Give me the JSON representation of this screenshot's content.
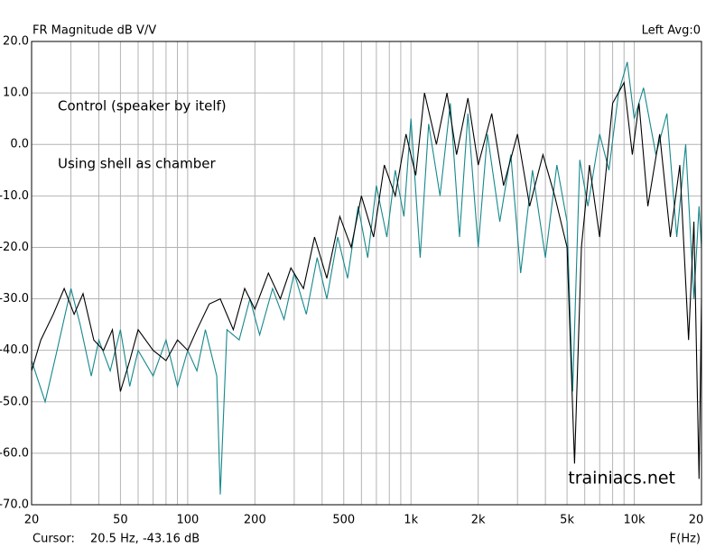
{
  "chart_data": {
    "type": "line",
    "title": "FR Magnitude dB V/V",
    "top_right": "Left  Avg:0",
    "cursor_label": "Cursor:",
    "cursor_value": "20.5 Hz, -43.16 dB",
    "x_label": "F(Hz)",
    "watermark": "trainiacs.net",
    "log_x": true,
    "grid": true,
    "xlim": [
      20,
      20000
    ],
    "ylim": [
      -70,
      20
    ],
    "xticks": [
      20,
      50,
      100,
      200,
      500,
      {
        "value": 1000,
        "label": "1k"
      },
      {
        "value": 2000,
        "label": "2k"
      },
      {
        "value": 5000,
        "label": "5k"
      },
      {
        "value": 10000,
        "label": "10k"
      },
      {
        "value": 20000,
        "label": "20"
      }
    ],
    "minor_xticks": [
      30,
      40,
      60,
      70,
      80,
      90,
      300,
      400,
      600,
      700,
      800,
      900,
      3000,
      4000,
      6000,
      7000,
      8000,
      9000
    ],
    "yticks": [
      {
        "value": 20,
        "label": "20.0"
      },
      {
        "value": 10,
        "label": "10.0"
      },
      {
        "value": 0,
        "label": "0.0"
      },
      {
        "value": -10,
        "label": "-10.0"
      },
      {
        "value": -20,
        "label": "-20.0"
      },
      {
        "value": -30,
        "label": "-30.0"
      },
      {
        "value": -40,
        "label": "-40.0"
      },
      {
        "value": -50,
        "label": "-50.0"
      },
      {
        "value": -60,
        "label": "-60.0"
      },
      {
        "value": -70,
        "label": "-70.0"
      }
    ],
    "series": [
      {
        "name": "Control (speaker by itelf)",
        "color": "#16888c",
        "x": [
          20,
          23,
          26,
          30,
          33,
          37,
          40,
          45,
          50,
          55,
          60,
          70,
          80,
          90,
          100,
          110,
          120,
          135,
          140,
          150,
          170,
          190,
          210,
          240,
          270,
          300,
          340,
          380,
          420,
          470,
          520,
          580,
          640,
          700,
          780,
          850,
          930,
          1000,
          1100,
          1200,
          1350,
          1500,
          1650,
          1800,
          2000,
          2200,
          2500,
          2800,
          3100,
          3500,
          4000,
          4500,
          5000,
          5300,
          5700,
          6200,
          7000,
          7700,
          8500,
          9300,
          10000,
          11000,
          12500,
          14000,
          15500,
          17000,
          18500,
          19500,
          20000
        ],
        "values": [
          -42,
          -50,
          -40,
          -28,
          -35,
          -45,
          -38,
          -44,
          -36,
          -47,
          -40,
          -45,
          -38,
          -47,
          -40,
          -44,
          -36,
          -45,
          -68,
          -36,
          -38,
          -30,
          -37,
          -28,
          -34,
          -25,
          -33,
          -22,
          -30,
          -18,
          -26,
          -12,
          -22,
          -8,
          -18,
          -5,
          -14,
          5,
          -22,
          4,
          -10,
          8,
          -18,
          6,
          -20,
          2,
          -15,
          -2,
          -25,
          -5,
          -22,
          -4,
          -15,
          -48,
          -3,
          -12,
          2,
          -5,
          10,
          16,
          5,
          11,
          -2,
          6,
          -18,
          0,
          -30,
          -12,
          -20
        ]
      },
      {
        "name": "Using shell as chamber",
        "color": "#000000",
        "x": [
          20,
          22,
          25,
          28,
          31,
          34,
          38,
          42,
          46,
          50,
          55,
          60,
          70,
          80,
          90,
          100,
          110,
          125,
          140,
          160,
          180,
          200,
          230,
          260,
          290,
          330,
          370,
          420,
          480,
          540,
          600,
          680,
          760,
          850,
          950,
          1050,
          1150,
          1300,
          1450,
          1600,
          1800,
          2000,
          2300,
          2600,
          3000,
          3400,
          3900,
          4400,
          5000,
          5400,
          5800,
          6300,
          7000,
          8000,
          9000,
          9800,
          10500,
          11500,
          13000,
          14500,
          16000,
          17500,
          18500,
          19500,
          20000
        ],
        "values": [
          -44,
          -38,
          -33,
          -28,
          -33,
          -29,
          -38,
          -40,
          -36,
          -48,
          -42,
          -36,
          -40,
          -42,
          -38,
          -40,
          -36,
          -31,
          -30,
          -36,
          -28,
          -32,
          -25,
          -30,
          -24,
          -28,
          -18,
          -26,
          -14,
          -20,
          -10,
          -18,
          -4,
          -10,
          2,
          -6,
          10,
          0,
          10,
          -2,
          9,
          -4,
          6,
          -8,
          2,
          -12,
          -2,
          -10,
          -20,
          -62,
          -20,
          -4,
          -18,
          8,
          12,
          -2,
          8,
          -12,
          2,
          -18,
          -4,
          -38,
          -15,
          -65,
          -30
        ]
      }
    ]
  }
}
